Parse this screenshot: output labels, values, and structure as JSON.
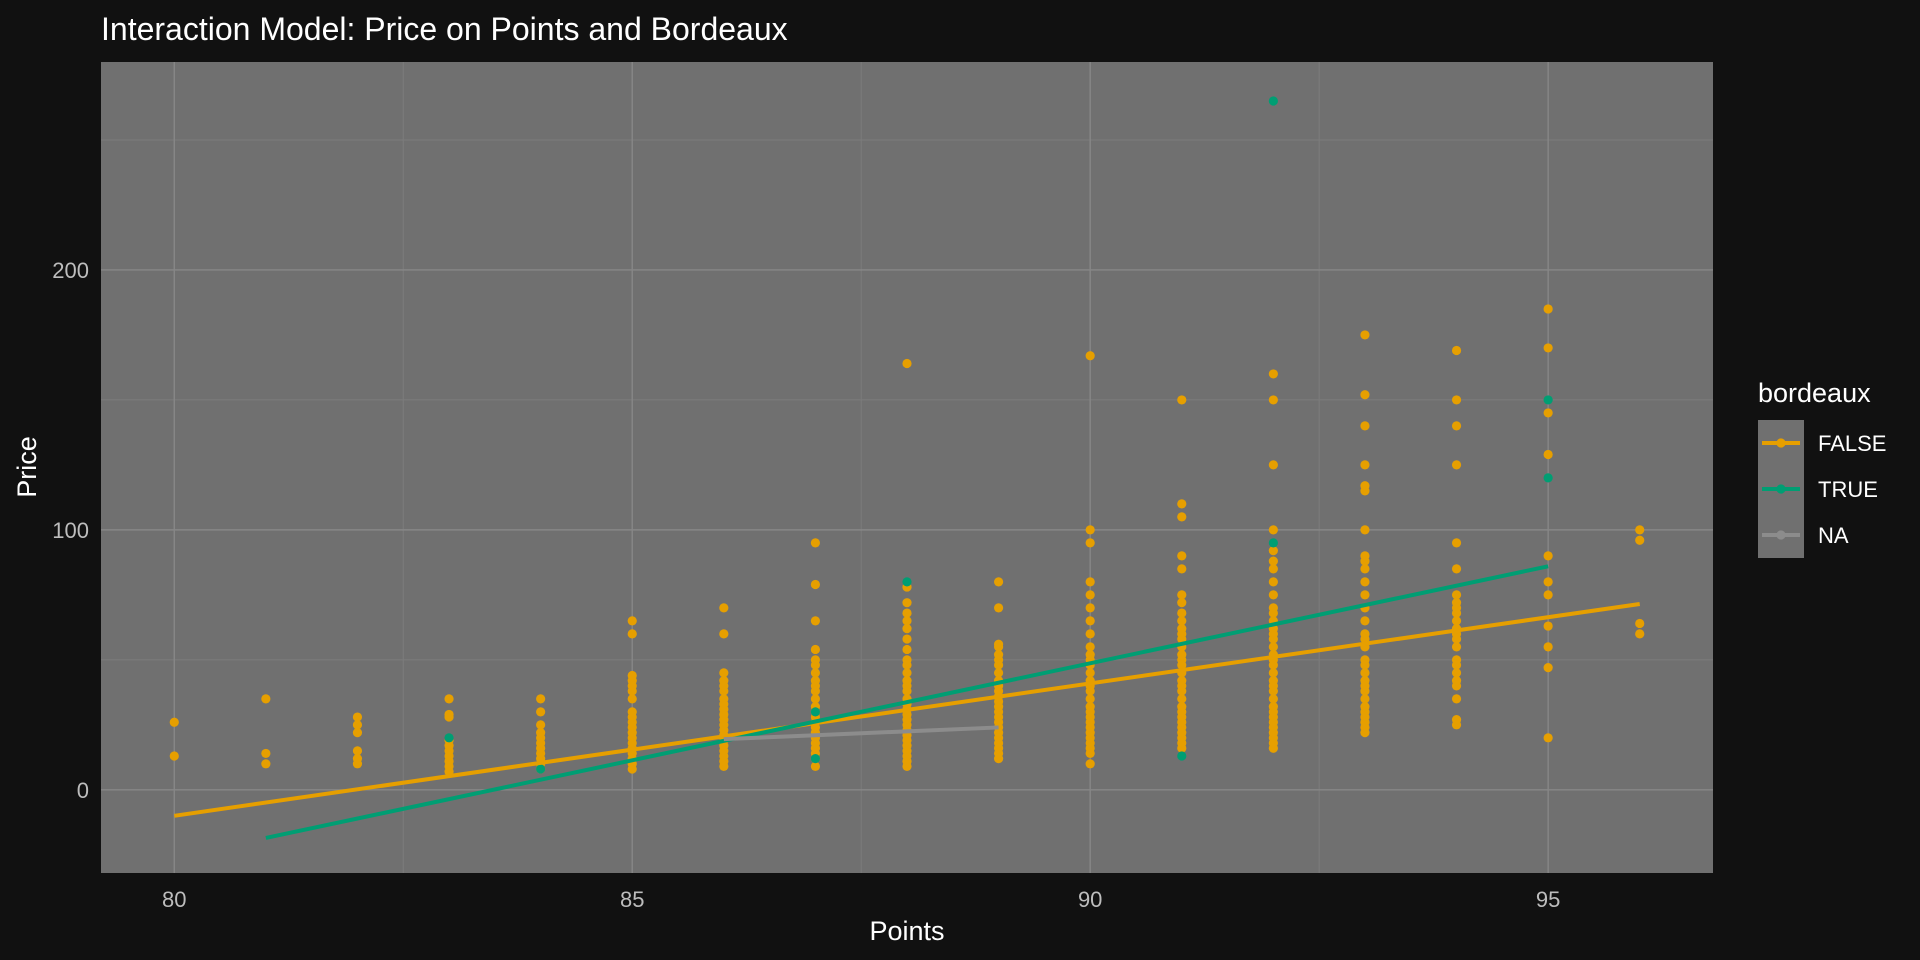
{
  "chart_data": {
    "type": "scatter",
    "title": "Interaction Model: Price on Points and Bordeaux",
    "xlabel": "Points",
    "ylabel": "Price",
    "xlim": [
      79.2,
      96.8
    ],
    "ylim": [
      -32,
      280
    ],
    "x_ticks": [
      80,
      85,
      90,
      95
    ],
    "y_ticks": [
      0,
      100,
      200
    ],
    "grid": true,
    "legend": {
      "title": "bordeaux",
      "position": "right",
      "entries": [
        "FALSE",
        "TRUE",
        "NA"
      ]
    },
    "colors": {
      "FALSE": "#E69F00",
      "TRUE": "#009E73",
      "NA": "#8C8C8C"
    },
    "series": [
      {
        "name": "FALSE",
        "color": "#E69F00",
        "points": [
          [
            80,
            13
          ],
          [
            80,
            26
          ],
          [
            81,
            10
          ],
          [
            81,
            14
          ],
          [
            81,
            35
          ],
          [
            82,
            10
          ],
          [
            82,
            12
          ],
          [
            82,
            15
          ],
          [
            82,
            22
          ],
          [
            82,
            25
          ],
          [
            82,
            28
          ],
          [
            83,
            7
          ],
          [
            83,
            9
          ],
          [
            83,
            11
          ],
          [
            83,
            13
          ],
          [
            83,
            15
          ],
          [
            83,
            17
          ],
          [
            83,
            19
          ],
          [
            83,
            28
          ],
          [
            83,
            29
          ],
          [
            83,
            35
          ],
          [
            84,
            8
          ],
          [
            84,
            10
          ],
          [
            84,
            12
          ],
          [
            84,
            14
          ],
          [
            84,
            16
          ],
          [
            84,
            18
          ],
          [
            84,
            20
          ],
          [
            84,
            22
          ],
          [
            84,
            25
          ],
          [
            84,
            30
          ],
          [
            84,
            35
          ],
          [
            85,
            8
          ],
          [
            85,
            10
          ],
          [
            85,
            12
          ],
          [
            85,
            14
          ],
          [
            85,
            16
          ],
          [
            85,
            18
          ],
          [
            85,
            20
          ],
          [
            85,
            22
          ],
          [
            85,
            24
          ],
          [
            85,
            26
          ],
          [
            85,
            28
          ],
          [
            85,
            30
          ],
          [
            85,
            35
          ],
          [
            85,
            38
          ],
          [
            85,
            40
          ],
          [
            85,
            42
          ],
          [
            85,
            44
          ],
          [
            85,
            60
          ],
          [
            85,
            65
          ],
          [
            86,
            9
          ],
          [
            86,
            11
          ],
          [
            86,
            13
          ],
          [
            86,
            15
          ],
          [
            86,
            17
          ],
          [
            86,
            19
          ],
          [
            86,
            21
          ],
          [
            86,
            23
          ],
          [
            86,
            25
          ],
          [
            86,
            27
          ],
          [
            86,
            29
          ],
          [
            86,
            31
          ],
          [
            86,
            33
          ],
          [
            86,
            35
          ],
          [
            86,
            38
          ],
          [
            86,
            40
          ],
          [
            86,
            42
          ],
          [
            86,
            45
          ],
          [
            86,
            60
          ],
          [
            86,
            70
          ],
          [
            87,
            9
          ],
          [
            87,
            12
          ],
          [
            87,
            14
          ],
          [
            87,
            16
          ],
          [
            87,
            18
          ],
          [
            87,
            20
          ],
          [
            87,
            22
          ],
          [
            87,
            24
          ],
          [
            87,
            26
          ],
          [
            87,
            28
          ],
          [
            87,
            30
          ],
          [
            87,
            32
          ],
          [
            87,
            35
          ],
          [
            87,
            38
          ],
          [
            87,
            40
          ],
          [
            87,
            42
          ],
          [
            87,
            45
          ],
          [
            87,
            48
          ],
          [
            87,
            50
          ],
          [
            87,
            54
          ],
          [
            87,
            65
          ],
          [
            87,
            79
          ],
          [
            87,
            95
          ],
          [
            88,
            9
          ],
          [
            88,
            11
          ],
          [
            88,
            13
          ],
          [
            88,
            15
          ],
          [
            88,
            17
          ],
          [
            88,
            19
          ],
          [
            88,
            21
          ],
          [
            88,
            23
          ],
          [
            88,
            25
          ],
          [
            88,
            27
          ],
          [
            88,
            29
          ],
          [
            88,
            31
          ],
          [
            88,
            33
          ],
          [
            88,
            35
          ],
          [
            88,
            38
          ],
          [
            88,
            40
          ],
          [
            88,
            42
          ],
          [
            88,
            45
          ],
          [
            88,
            48
          ],
          [
            88,
            50
          ],
          [
            88,
            54
          ],
          [
            88,
            58
          ],
          [
            88,
            62
          ],
          [
            88,
            65
          ],
          [
            88,
            68
          ],
          [
            88,
            72
          ],
          [
            88,
            78
          ],
          [
            88,
            164
          ],
          [
            89,
            12
          ],
          [
            89,
            14
          ],
          [
            89,
            16
          ],
          [
            89,
            18
          ],
          [
            89,
            20
          ],
          [
            89,
            22
          ],
          [
            89,
            24
          ],
          [
            89,
            26
          ],
          [
            89,
            28
          ],
          [
            89,
            30
          ],
          [
            89,
            32
          ],
          [
            89,
            34
          ],
          [
            89,
            36
          ],
          [
            89,
            38
          ],
          [
            89,
            40
          ],
          [
            89,
            42
          ],
          [
            89,
            45
          ],
          [
            89,
            48
          ],
          [
            89,
            50
          ],
          [
            89,
            52
          ],
          [
            89,
            55
          ],
          [
            89,
            56
          ],
          [
            89,
            70
          ],
          [
            89,
            80
          ],
          [
            90,
            10
          ],
          [
            90,
            14
          ],
          [
            90,
            16
          ],
          [
            90,
            18
          ],
          [
            90,
            20
          ],
          [
            90,
            22
          ],
          [
            90,
            24
          ],
          [
            90,
            26
          ],
          [
            90,
            28
          ],
          [
            90,
            30
          ],
          [
            90,
            32
          ],
          [
            90,
            35
          ],
          [
            90,
            38
          ],
          [
            90,
            40
          ],
          [
            90,
            42
          ],
          [
            90,
            45
          ],
          [
            90,
            48
          ],
          [
            90,
            50
          ],
          [
            90,
            52
          ],
          [
            90,
            55
          ],
          [
            90,
            60
          ],
          [
            90,
            65
          ],
          [
            90,
            70
          ],
          [
            90,
            75
          ],
          [
            90,
            80
          ],
          [
            90,
            95
          ],
          [
            90,
            100
          ],
          [
            90,
            167
          ],
          [
            91,
            16
          ],
          [
            91,
            18
          ],
          [
            91,
            20
          ],
          [
            91,
            22
          ],
          [
            91,
            24
          ],
          [
            91,
            26
          ],
          [
            91,
            28
          ],
          [
            91,
            30
          ],
          [
            91,
            32
          ],
          [
            91,
            35
          ],
          [
            91,
            38
          ],
          [
            91,
            40
          ],
          [
            91,
            42
          ],
          [
            91,
            45
          ],
          [
            91,
            48
          ],
          [
            91,
            50
          ],
          [
            91,
            52
          ],
          [
            91,
            55
          ],
          [
            91,
            58
          ],
          [
            91,
            60
          ],
          [
            91,
            62
          ],
          [
            91,
            65
          ],
          [
            91,
            68
          ],
          [
            91,
            72
          ],
          [
            91,
            75
          ],
          [
            91,
            85
          ],
          [
            91,
            90
          ],
          [
            91,
            105
          ],
          [
            91,
            110
          ],
          [
            91,
            150
          ],
          [
            92,
            16
          ],
          [
            92,
            18
          ],
          [
            92,
            20
          ],
          [
            92,
            22
          ],
          [
            92,
            24
          ],
          [
            92,
            26
          ],
          [
            92,
            28
          ],
          [
            92,
            30
          ],
          [
            92,
            32
          ],
          [
            92,
            35
          ],
          [
            92,
            38
          ],
          [
            92,
            40
          ],
          [
            92,
            42
          ],
          [
            92,
            45
          ],
          [
            92,
            48
          ],
          [
            92,
            50
          ],
          [
            92,
            52
          ],
          [
            92,
            55
          ],
          [
            92,
            58
          ],
          [
            92,
            60
          ],
          [
            92,
            62
          ],
          [
            92,
            65
          ],
          [
            92,
            68
          ],
          [
            92,
            70
          ],
          [
            92,
            75
          ],
          [
            92,
            80
          ],
          [
            92,
            85
          ],
          [
            92,
            88
          ],
          [
            92,
            92
          ],
          [
            92,
            100
          ],
          [
            92,
            125
          ],
          [
            92,
            150
          ],
          [
            92,
            160
          ],
          [
            93,
            22
          ],
          [
            93,
            24
          ],
          [
            93,
            26
          ],
          [
            93,
            28
          ],
          [
            93,
            30
          ],
          [
            93,
            32
          ],
          [
            93,
            35
          ],
          [
            93,
            38
          ],
          [
            93,
            40
          ],
          [
            93,
            42
          ],
          [
            93,
            45
          ],
          [
            93,
            48
          ],
          [
            93,
            50
          ],
          [
            93,
            55
          ],
          [
            93,
            58
          ],
          [
            93,
            60
          ],
          [
            93,
            65
          ],
          [
            93,
            70
          ],
          [
            93,
            75
          ],
          [
            93,
            80
          ],
          [
            93,
            85
          ],
          [
            93,
            88
          ],
          [
            93,
            90
          ],
          [
            93,
            100
          ],
          [
            93,
            115
          ],
          [
            93,
            117
          ],
          [
            93,
            125
          ],
          [
            93,
            140
          ],
          [
            93,
            152
          ],
          [
            93,
            175
          ],
          [
            94,
            25
          ],
          [
            94,
            27
          ],
          [
            94,
            35
          ],
          [
            94,
            40
          ],
          [
            94,
            42
          ],
          [
            94,
            45
          ],
          [
            94,
            48
          ],
          [
            94,
            50
          ],
          [
            94,
            55
          ],
          [
            94,
            58
          ],
          [
            94,
            60
          ],
          [
            94,
            62
          ],
          [
            94,
            65
          ],
          [
            94,
            68
          ],
          [
            94,
            70
          ],
          [
            94,
            72
          ],
          [
            94,
            75
          ],
          [
            94,
            85
          ],
          [
            94,
            95
          ],
          [
            94,
            125
          ],
          [
            94,
            140
          ],
          [
            94,
            150
          ],
          [
            94,
            169
          ],
          [
            95,
            20
          ],
          [
            95,
            47
          ],
          [
            95,
            55
          ],
          [
            95,
            63
          ],
          [
            95,
            75
          ],
          [
            95,
            80
          ],
          [
            95,
            90
          ],
          [
            95,
            129
          ],
          [
            95,
            145
          ],
          [
            95,
            170
          ],
          [
            95,
            185
          ],
          [
            96,
            60
          ],
          [
            96,
            64
          ],
          [
            96,
            96
          ],
          [
            96,
            100
          ]
        ],
        "fit": [
          [
            80,
            -10
          ],
          [
            96,
            71.5
          ]
        ]
      },
      {
        "name": "TRUE",
        "color": "#009E73",
        "points": [
          [
            83,
            20
          ],
          [
            84,
            8
          ],
          [
            87,
            12
          ],
          [
            87,
            30
          ],
          [
            88,
            80
          ],
          [
            91,
            13
          ],
          [
            92,
            95
          ],
          [
            92,
            265
          ],
          [
            95,
            120
          ],
          [
            95,
            150
          ]
        ],
        "fit": [
          [
            81,
            -18.5
          ],
          [
            95,
            86
          ]
        ]
      },
      {
        "name": "NA",
        "color": "#8C8C8C",
        "points": [],
        "fit": [
          [
            86,
            19.5
          ],
          [
            87,
            21
          ],
          [
            88,
            22.5
          ],
          [
            89,
            24
          ]
        ]
      }
    ]
  }
}
